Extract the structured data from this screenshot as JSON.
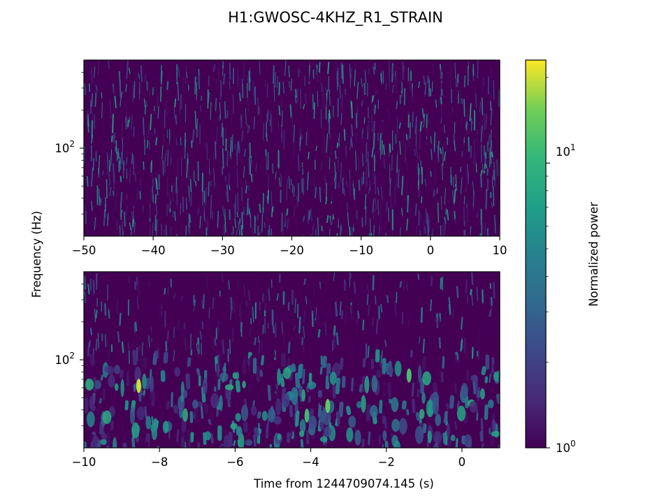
{
  "title": "H1:GWOSC-4KHZ_R1_STRAIN",
  "ylabel": "Frequency (Hz)",
  "xlabel": "Time from 1244709074.145 (s)",
  "colorbar": {
    "label": "Normalized power",
    "tick_labels": {
      "low": "10",
      "low_exp": "0",
      "high": "10",
      "high_exp": "1"
    },
    "range": [
      1,
      23
    ],
    "scale": "log",
    "colormap": "viridis"
  },
  "chart_data": [
    {
      "type": "heatmap",
      "panel": "top",
      "xlim": [
        -50,
        10
      ],
      "ylim": [
        20,
        500
      ],
      "yscale": "log",
      "x_ticks": [
        -50,
        -40,
        -30,
        -20,
        -10,
        0,
        10
      ],
      "x_tick_labels": [
        "−50",
        "−40",
        "−30",
        "−20",
        "−10",
        "0",
        "10"
      ],
      "y_ticks": [
        100
      ],
      "y_tick_labels": [
        {
          "base": "10",
          "exp": "2"
        }
      ],
      "description_value_range": [
        1,
        12
      ],
      "colormap": "viridis"
    },
    {
      "type": "heatmap",
      "panel": "bottom",
      "xlim": [
        -10,
        1
      ],
      "ylim": [
        20,
        500
      ],
      "yscale": "log",
      "x_ticks": [
        -10,
        -8,
        -6,
        -4,
        -2,
        0
      ],
      "x_tick_labels": [
        "−10",
        "−8",
        "−6",
        "−4",
        "−2",
        "0"
      ],
      "y_ticks": [
        100
      ],
      "y_tick_labels": [
        {
          "base": "10",
          "exp": "2"
        }
      ],
      "description_value_range": [
        1,
        23
      ],
      "colormap": "viridis"
    }
  ]
}
